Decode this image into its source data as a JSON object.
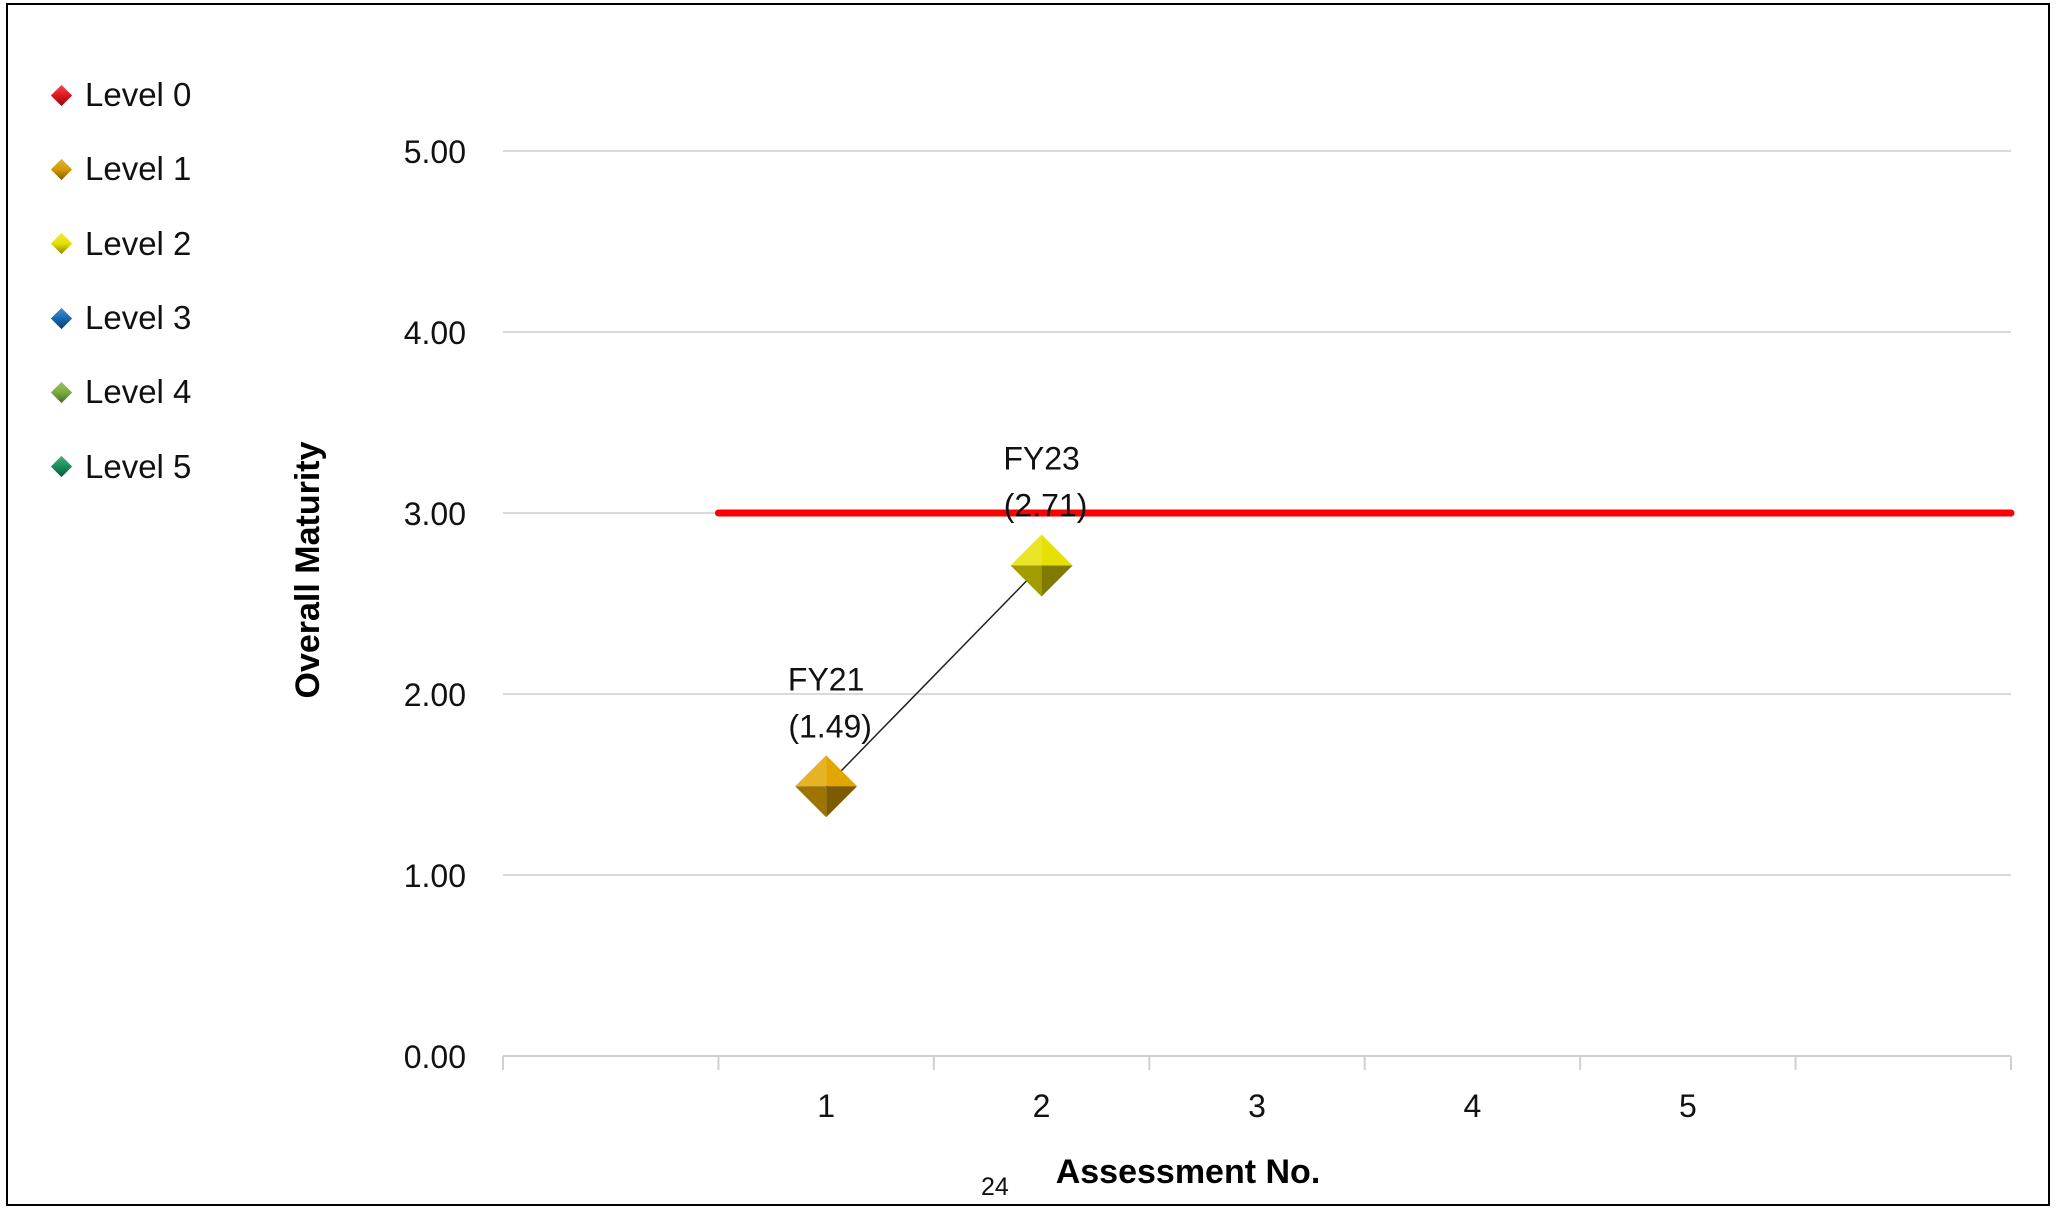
{
  "chart_data": {
    "type": "scatter",
    "title": "",
    "xlabel": "Assessment No.",
    "ylabel": "Overall Maturity",
    "ylim": [
      0,
      5
    ],
    "y_ticks": [
      "0.00",
      "1.00",
      "2.00",
      "3.00",
      "4.00",
      "5.00"
    ],
    "x_tick_labels": [
      "1",
      "2",
      "3",
      "4",
      "5"
    ],
    "grid": true,
    "legend_position": "top-left",
    "legend": [
      {
        "label": "Level 0",
        "color": "#e0161b"
      },
      {
        "label": "Level 1",
        "color": "#d49a00"
      },
      {
        "label": "Level 2",
        "color": "#e6e000"
      },
      {
        "label": "Level 3",
        "color": "#1468b6"
      },
      {
        "label": "Level 4",
        "color": "#7cab3c"
      },
      {
        "label": "Level 5",
        "color": "#13905a"
      }
    ],
    "points": [
      {
        "x": 1,
        "y": 1.49,
        "label_line1": "FY21",
        "label_line2": "(1.49)",
        "level": "Level 1",
        "color": "#e3a500"
      },
      {
        "x": 2,
        "y": 2.71,
        "label_line1": "FY23",
        "label_line2": "(2.71)",
        "level": "Level 2",
        "color": "#e6e000"
      }
    ],
    "target_line": {
      "y": 3.0,
      "x_from": 0.5,
      "x_to": 6.5,
      "color": "#ff0000"
    }
  },
  "page_number": "24"
}
